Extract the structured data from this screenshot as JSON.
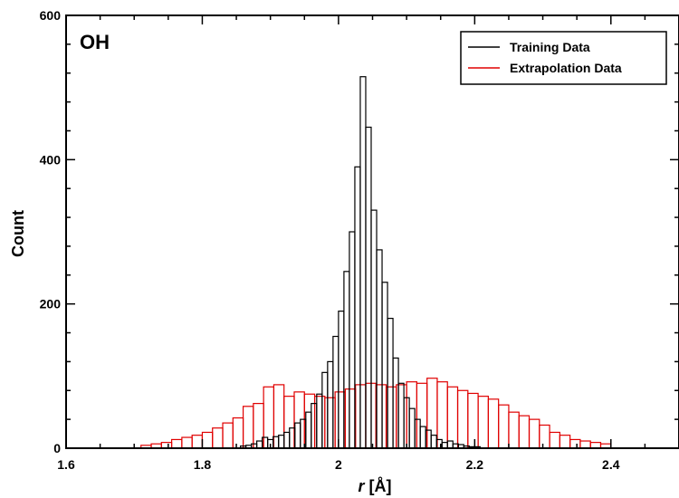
{
  "chart_data": {
    "type": "bar",
    "panel_label": "OH",
    "xlabel_italic": "r",
    "xlabel_rest": " [Å]",
    "ylabel": "Count",
    "xlim": [
      1.6,
      2.5
    ],
    "ylim": [
      0,
      600
    ],
    "xticks": [
      1.6,
      1.8,
      2.0,
      2.2,
      2.4
    ],
    "xtick_labels": [
      "1.6",
      "1.8",
      "2",
      "2.2",
      "2.4"
    ],
    "yticks": [
      0,
      200,
      400,
      600
    ],
    "ytick_labels": [
      "0",
      "200",
      "400",
      "600"
    ],
    "grid": false,
    "legend_position": "top-right",
    "series": [
      {
        "name": "Training Data",
        "color": "#000000",
        "bin_width": 0.008,
        "bin_starts": [
          1.856,
          1.864,
          1.872,
          1.88,
          1.888,
          1.896,
          1.904,
          1.912,
          1.92,
          1.928,
          1.936,
          1.944,
          1.952,
          1.96,
          1.968,
          1.976,
          1.984,
          1.992,
          2.0,
          2.008,
          2.016,
          2.024,
          2.032,
          2.04,
          2.048,
          2.056,
          2.064,
          2.072,
          2.08,
          2.088,
          2.096,
          2.104,
          2.112,
          2.12,
          2.128,
          2.136,
          2.144,
          2.152,
          2.16,
          2.168,
          2.176,
          2.184,
          2.192,
          2.2
        ],
        "values": [
          3,
          4,
          6,
          10,
          15,
          12,
          16,
          18,
          22,
          28,
          35,
          40,
          50,
          62,
          75,
          105,
          120,
          155,
          190,
          245,
          300,
          390,
          515,
          445,
          330,
          275,
          230,
          180,
          125,
          90,
          70,
          55,
          40,
          30,
          25,
          18,
          12,
          8,
          10,
          6,
          5,
          3,
          2,
          2
        ]
      },
      {
        "name": "Extrapolation Data",
        "color": "#e00000",
        "bin_width": 0.015,
        "bin_starts": [
          1.71,
          1.725,
          1.74,
          1.755,
          1.77,
          1.785,
          1.8,
          1.815,
          1.83,
          1.845,
          1.86,
          1.875,
          1.89,
          1.905,
          1.92,
          1.935,
          1.95,
          1.965,
          1.98,
          1.995,
          2.01,
          2.025,
          2.04,
          2.055,
          2.07,
          2.085,
          2.1,
          2.115,
          2.13,
          2.145,
          2.16,
          2.175,
          2.19,
          2.205,
          2.22,
          2.235,
          2.25,
          2.265,
          2.28,
          2.295,
          2.31,
          2.325,
          2.34,
          2.355,
          2.37,
          2.385
        ],
        "values": [
          4,
          6,
          8,
          12,
          15,
          18,
          22,
          28,
          35,
          42,
          58,
          62,
          85,
          88,
          72,
          78,
          75,
          72,
          70,
          78,
          82,
          88,
          90,
          88,
          85,
          88,
          92,
          90,
          97,
          92,
          85,
          80,
          76,
          72,
          68,
          60,
          50,
          45,
          40,
          32,
          22,
          18,
          12,
          10,
          8,
          6
        ]
      }
    ]
  }
}
